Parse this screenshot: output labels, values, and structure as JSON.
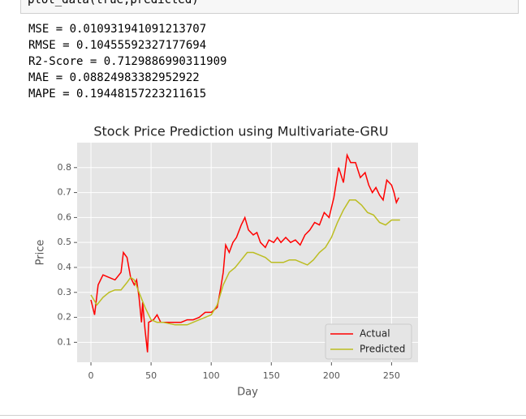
{
  "input": {
    "code": "plot_data(true,predicted)"
  },
  "output": {
    "lines": [
      "MSE = 0.010931941091213707",
      "RMSE = 0.10455592327177694",
      "R2-Score = 0.7129886990311909",
      "MAE = 0.08824983382952922",
      "MAPE = 0.19448157223211615"
    ]
  },
  "chart_data": {
    "type": "line",
    "title": "Stock Price Prediction using Multivariate-GRU",
    "x_label": "Day",
    "y_label": "Price",
    "xlim": [
      -11.5,
      272
    ],
    "ylim": [
      0.02,
      0.9
    ],
    "xticks": [
      0,
      50,
      100,
      150,
      200,
      250
    ],
    "yticks": [
      0.1,
      0.2,
      0.3,
      0.4,
      0.5,
      0.6,
      0.7,
      0.8
    ],
    "grid": true,
    "legend": "lower right",
    "series": [
      {
        "name": "Actual",
        "color": "#ff0000",
        "x": [
          0,
          3,
          6,
          10,
          15,
          20,
          25,
          27,
          30,
          33,
          36,
          38,
          40,
          42,
          43,
          45,
          47,
          48,
          52,
          55,
          58,
          65,
          75,
          80,
          85,
          90,
          95,
          100,
          105,
          108,
          110,
          112,
          115,
          118,
          121,
          125,
          128,
          131,
          135,
          138,
          141,
          145,
          148,
          152,
          155,
          158,
          162,
          166,
          170,
          174,
          178,
          182,
          186,
          190,
          194,
          198,
          202,
          206,
          210,
          213,
          216,
          220,
          224,
          228,
          231,
          234,
          237,
          240,
          243,
          246,
          250,
          252,
          254,
          256
        ],
        "values": [
          0.27,
          0.21,
          0.33,
          0.37,
          0.36,
          0.35,
          0.38,
          0.46,
          0.44,
          0.36,
          0.33,
          0.35,
          0.28,
          0.18,
          0.26,
          0.15,
          0.06,
          0.18,
          0.19,
          0.21,
          0.18,
          0.18,
          0.18,
          0.19,
          0.19,
          0.2,
          0.22,
          0.22,
          0.24,
          0.32,
          0.38,
          0.49,
          0.46,
          0.5,
          0.52,
          0.57,
          0.6,
          0.55,
          0.53,
          0.54,
          0.5,
          0.48,
          0.51,
          0.5,
          0.52,
          0.5,
          0.52,
          0.5,
          0.51,
          0.49,
          0.53,
          0.55,
          0.58,
          0.57,
          0.62,
          0.6,
          0.68,
          0.8,
          0.74,
          0.85,
          0.82,
          0.82,
          0.76,
          0.78,
          0.73,
          0.7,
          0.72,
          0.69,
          0.67,
          0.75,
          0.73,
          0.7,
          0.66,
          0.68
        ]
      },
      {
        "name": "Predicted",
        "color": "#bcbd22",
        "x": [
          0,
          5,
          10,
          15,
          20,
          25,
          30,
          33,
          36,
          40,
          45,
          50,
          55,
          60,
          70,
          80,
          90,
          100,
          105,
          110,
          115,
          120,
          125,
          130,
          135,
          140,
          145,
          150,
          155,
          160,
          165,
          170,
          175,
          180,
          185,
          190,
          195,
          200,
          205,
          210,
          215,
          220,
          225,
          230,
          235,
          240,
          245,
          250,
          255,
          257
        ],
        "values": [
          0.29,
          0.25,
          0.28,
          0.3,
          0.31,
          0.31,
          0.34,
          0.36,
          0.35,
          0.3,
          0.24,
          0.19,
          0.18,
          0.18,
          0.17,
          0.17,
          0.19,
          0.21,
          0.25,
          0.33,
          0.38,
          0.4,
          0.43,
          0.46,
          0.46,
          0.45,
          0.44,
          0.42,
          0.42,
          0.42,
          0.43,
          0.43,
          0.42,
          0.41,
          0.43,
          0.46,
          0.48,
          0.52,
          0.58,
          0.63,
          0.67,
          0.67,
          0.65,
          0.62,
          0.61,
          0.58,
          0.57,
          0.59,
          0.59,
          0.59
        ]
      }
    ]
  }
}
